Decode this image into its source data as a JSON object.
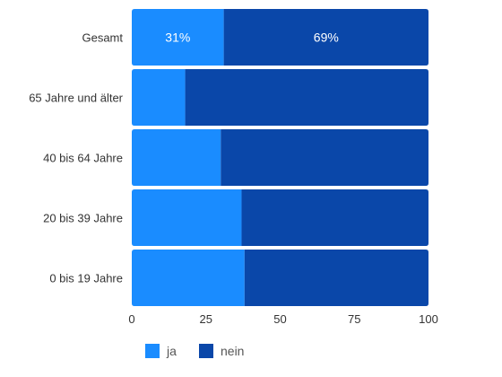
{
  "chart_data": {
    "type": "bar",
    "orientation": "horizontal",
    "stacked": true,
    "categories": [
      "Gesamt",
      "65 Jahre und älter",
      "40 bis 64 Jahre",
      "20 bis 39 Jahre",
      "0 bis 19 Jahre"
    ],
    "series": [
      {
        "name": "ja",
        "color": "#1a8cff",
        "values": [
          31,
          18,
          30,
          37,
          38
        ]
      },
      {
        "name": "nein",
        "color": "#0a47a9",
        "values": [
          69,
          82,
          70,
          63,
          62
        ]
      }
    ],
    "data_labels": [
      {
        "category": "Gesamt",
        "series": "ja",
        "text": "31%"
      },
      {
        "category": "Gesamt",
        "series": "nein",
        "text": "69%"
      }
    ],
    "xlim": [
      0,
      100
    ],
    "xticks": [
      0,
      25,
      50,
      75,
      100
    ],
    "title": "",
    "xlabel": "",
    "ylabel": "",
    "grid": false,
    "legend": "bottom-left"
  }
}
